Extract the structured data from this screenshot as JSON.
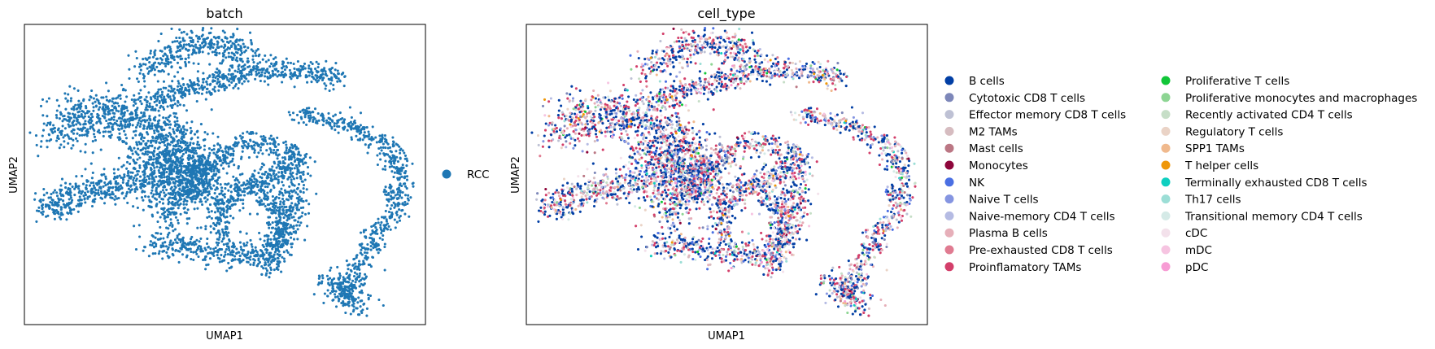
{
  "chart_data": [
    {
      "type": "scatter",
      "title": "batch",
      "xlabel": "UMAP1",
      "ylabel": "UMAP2",
      "xticks": [],
      "yticks": [],
      "xlim": [
        -9,
        11
      ],
      "ylim": [
        -6,
        11
      ],
      "grid": false,
      "legend_position": "right",
      "series": [
        {
          "name": "RCC",
          "color": "#1f77b4"
        }
      ],
      "point_count_approx": 6000
    },
    {
      "type": "scatter",
      "title": "cell_type",
      "xlabel": "UMAP1",
      "ylabel": "UMAP2",
      "xticks": [],
      "yticks": [],
      "xlim": [
        -9,
        11
      ],
      "ylim": [
        -6,
        11
      ],
      "grid": false,
      "legend_position": "right",
      "legend_columns": 2,
      "series": [
        {
          "name": "B cells",
          "color": "#023fa5"
        },
        {
          "name": "Cytotoxic CD8 T cells",
          "color": "#7d87b9"
        },
        {
          "name": "Effector memory CD8 T cells",
          "color": "#bec1d4"
        },
        {
          "name": "M2 TAMs",
          "color": "#d6bcc0"
        },
        {
          "name": "Mast cells",
          "color": "#bb7784"
        },
        {
          "name": "Monocytes",
          "color": "#8e063b"
        },
        {
          "name": "NK",
          "color": "#4a6fe3"
        },
        {
          "name": "Naive T cells",
          "color": "#8595e1"
        },
        {
          "name": "Naive-memory CD4 T cells",
          "color": "#b5bbe3"
        },
        {
          "name": "Plasma B cells",
          "color": "#e6afb9"
        },
        {
          "name": "Pre-exhausted CD8 T cells",
          "color": "#e07b91"
        },
        {
          "name": "Proinflamatory TAMs",
          "color": "#d33f6a"
        },
        {
          "name": "Proliferative T cells",
          "color": "#11c638"
        },
        {
          "name": "Proliferative monocytes and macrophages",
          "color": "#8dd593"
        },
        {
          "name": "Recently activated CD4 T cells",
          "color": "#c6dec7"
        },
        {
          "name": "Regulatory T cells",
          "color": "#ead3c6"
        },
        {
          "name": "SPP1 TAMs",
          "color": "#f0b98d"
        },
        {
          "name": "T helper cells",
          "color": "#ef9708"
        },
        {
          "name": "Terminally exhausted CD8 T cells",
          "color": "#0fcfc0"
        },
        {
          "name": "Th17 cells",
          "color": "#9cded6"
        },
        {
          "name": "Transitional memory CD4 T cells",
          "color": "#d5eae7"
        },
        {
          "name": "cDC",
          "color": "#f3e1eb"
        },
        {
          "name": "mDC",
          "color": "#f6c4e1"
        },
        {
          "name": "pDC",
          "color": "#f79cd4"
        }
      ]
    }
  ]
}
